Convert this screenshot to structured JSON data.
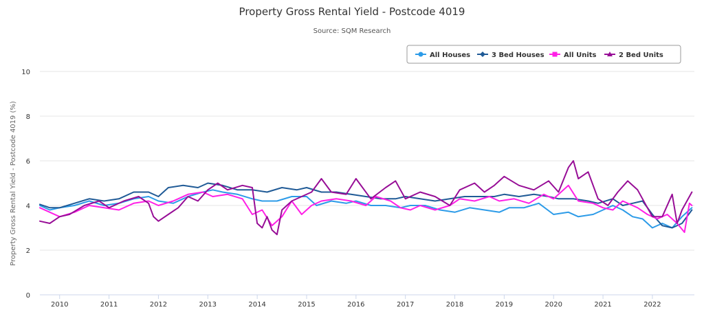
{
  "chart_data": {
    "type": "line",
    "title": "Property Gross Rental Yield - Postcode 4019",
    "subtitle": "Source: SQM Research",
    "xlabel": "",
    "ylabel": "Property Gross Rental Yield - Postcode 4019 (%)",
    "xlim": [
      2009.6,
      2022.85
    ],
    "ylim": [
      0,
      10
    ],
    "x_ticks": [
      "2010",
      "2011",
      "2012",
      "2013",
      "2014",
      "2015",
      "2016",
      "2017",
      "2018",
      "2019",
      "2020",
      "2021",
      "2022"
    ],
    "y_ticks": [
      "0",
      "2",
      "4",
      "6",
      "8",
      "10"
    ],
    "grid": true,
    "legend_position": "top-right",
    "series": [
      {
        "name": "All Houses",
        "color": "#2c9be8",
        "marker": "circle",
        "points": [
          [
            2009.6,
            4.0
          ],
          [
            2009.8,
            3.8
          ],
          [
            2010.0,
            3.9
          ],
          [
            2010.3,
            4.0
          ],
          [
            2010.6,
            4.2
          ],
          [
            2010.9,
            4.0
          ],
          [
            2011.2,
            4.1
          ],
          [
            2011.5,
            4.3
          ],
          [
            2011.8,
            4.4
          ],
          [
            2012.0,
            4.2
          ],
          [
            2012.3,
            4.1
          ],
          [
            2012.6,
            4.4
          ],
          [
            2012.9,
            4.6
          ],
          [
            2013.1,
            4.7
          ],
          [
            2013.3,
            4.6
          ],
          [
            2013.6,
            4.5
          ],
          [
            2013.9,
            4.3
          ],
          [
            2014.1,
            4.2
          ],
          [
            2014.4,
            4.2
          ],
          [
            2014.7,
            4.4
          ],
          [
            2015.0,
            4.4
          ],
          [
            2015.2,
            4.0
          ],
          [
            2015.5,
            4.2
          ],
          [
            2015.8,
            4.1
          ],
          [
            2016.0,
            4.2
          ],
          [
            2016.3,
            4.0
          ],
          [
            2016.6,
            4.0
          ],
          [
            2016.9,
            3.9
          ],
          [
            2017.1,
            4.0
          ],
          [
            2017.4,
            4.0
          ],
          [
            2017.7,
            3.8
          ],
          [
            2018.0,
            3.7
          ],
          [
            2018.3,
            3.9
          ],
          [
            2018.6,
            3.8
          ],
          [
            2018.9,
            3.7
          ],
          [
            2019.1,
            3.9
          ],
          [
            2019.4,
            3.9
          ],
          [
            2019.7,
            4.1
          ],
          [
            2020.0,
            3.6
          ],
          [
            2020.3,
            3.7
          ],
          [
            2020.5,
            3.5
          ],
          [
            2020.8,
            3.6
          ],
          [
            2021.0,
            3.8
          ],
          [
            2021.2,
            4.0
          ],
          [
            2021.4,
            3.8
          ],
          [
            2021.6,
            3.5
          ],
          [
            2021.8,
            3.4
          ],
          [
            2022.0,
            3.0
          ],
          [
            2022.2,
            3.2
          ],
          [
            2022.4,
            3.0
          ],
          [
            2022.6,
            3.5
          ],
          [
            2022.8,
            3.9
          ]
        ]
      },
      {
        "name": "3 Bed Houses",
        "color": "#1f5a96",
        "marker": "diamond",
        "points": [
          [
            2009.6,
            4.05
          ],
          [
            2009.8,
            3.9
          ],
          [
            2010.0,
            3.9
          ],
          [
            2010.3,
            4.1
          ],
          [
            2010.6,
            4.3
          ],
          [
            2010.9,
            4.2
          ],
          [
            2011.2,
            4.3
          ],
          [
            2011.5,
            4.6
          ],
          [
            2011.8,
            4.6
          ],
          [
            2012.0,
            4.4
          ],
          [
            2012.2,
            4.8
          ],
          [
            2012.5,
            4.9
          ],
          [
            2012.8,
            4.8
          ],
          [
            2013.0,
            5.0
          ],
          [
            2013.3,
            4.9
          ],
          [
            2013.6,
            4.7
          ],
          [
            2013.9,
            4.7
          ],
          [
            2014.2,
            4.6
          ],
          [
            2014.5,
            4.8
          ],
          [
            2014.8,
            4.7
          ],
          [
            2015.0,
            4.8
          ],
          [
            2015.3,
            4.6
          ],
          [
            2015.6,
            4.6
          ],
          [
            2015.9,
            4.5
          ],
          [
            2016.2,
            4.4
          ],
          [
            2016.5,
            4.3
          ],
          [
            2016.8,
            4.3
          ],
          [
            2017.0,
            4.4
          ],
          [
            2017.3,
            4.3
          ],
          [
            2017.6,
            4.2
          ],
          [
            2017.9,
            4.3
          ],
          [
            2018.2,
            4.4
          ],
          [
            2018.5,
            4.4
          ],
          [
            2018.8,
            4.4
          ],
          [
            2019.0,
            4.5
          ],
          [
            2019.3,
            4.4
          ],
          [
            2019.6,
            4.5
          ],
          [
            2019.9,
            4.4
          ],
          [
            2020.1,
            4.3
          ],
          [
            2020.4,
            4.3
          ],
          [
            2020.7,
            4.2
          ],
          [
            2020.9,
            4.1
          ],
          [
            2021.2,
            4.3
          ],
          [
            2021.4,
            4.0
          ],
          [
            2021.6,
            4.1
          ],
          [
            2021.8,
            4.2
          ],
          [
            2022.0,
            3.6
          ],
          [
            2022.2,
            3.1
          ],
          [
            2022.4,
            3.0
          ],
          [
            2022.6,
            3.2
          ],
          [
            2022.8,
            3.8
          ]
        ]
      },
      {
        "name": "All Units",
        "color": "#ff1fe6",
        "marker": "square",
        "points": [
          [
            2009.6,
            3.9
          ],
          [
            2009.8,
            3.7
          ],
          [
            2010.0,
            3.5
          ],
          [
            2010.3,
            3.7
          ],
          [
            2010.6,
            4.0
          ],
          [
            2010.9,
            3.9
          ],
          [
            2011.2,
            3.8
          ],
          [
            2011.5,
            4.1
          ],
          [
            2011.8,
            4.2
          ],
          [
            2012.0,
            4.0
          ],
          [
            2012.3,
            4.2
          ],
          [
            2012.6,
            4.5
          ],
          [
            2012.9,
            4.6
          ],
          [
            2013.1,
            4.4
          ],
          [
            2013.4,
            4.5
          ],
          [
            2013.7,
            4.3
          ],
          [
            2013.9,
            3.6
          ],
          [
            2014.1,
            3.8
          ],
          [
            2014.3,
            3.1
          ],
          [
            2014.5,
            3.5
          ],
          [
            2014.7,
            4.2
          ],
          [
            2014.9,
            3.6
          ],
          [
            2015.1,
            4.0
          ],
          [
            2015.3,
            4.2
          ],
          [
            2015.6,
            4.3
          ],
          [
            2015.9,
            4.2
          ],
          [
            2016.2,
            4.0
          ],
          [
            2016.4,
            4.4
          ],
          [
            2016.7,
            4.2
          ],
          [
            2016.9,
            3.9
          ],
          [
            2017.1,
            3.8
          ],
          [
            2017.3,
            4.0
          ],
          [
            2017.6,
            3.8
          ],
          [
            2017.9,
            4.0
          ],
          [
            2018.1,
            4.3
          ],
          [
            2018.4,
            4.2
          ],
          [
            2018.7,
            4.4
          ],
          [
            2018.9,
            4.2
          ],
          [
            2019.2,
            4.3
          ],
          [
            2019.5,
            4.1
          ],
          [
            2019.8,
            4.5
          ],
          [
            2020.0,
            4.3
          ],
          [
            2020.3,
            4.9
          ],
          [
            2020.5,
            4.2
          ],
          [
            2020.8,
            4.1
          ],
          [
            2021.0,
            3.9
          ],
          [
            2021.2,
            3.8
          ],
          [
            2021.4,
            4.2
          ],
          [
            2021.7,
            3.9
          ],
          [
            2021.9,
            3.6
          ],
          [
            2022.1,
            3.4
          ],
          [
            2022.3,
            3.6
          ],
          [
            2022.5,
            3.2
          ],
          [
            2022.65,
            2.8
          ],
          [
            2022.75,
            4.1
          ],
          [
            2022.8,
            4.0
          ]
        ]
      },
      {
        "name": "2 Bed Units",
        "color": "#970d96",
        "marker": "triangle",
        "points": [
          [
            2009.6,
            3.3
          ],
          [
            2009.8,
            3.2
          ],
          [
            2010.0,
            3.5
          ],
          [
            2010.2,
            3.6
          ],
          [
            2010.5,
            4.0
          ],
          [
            2010.8,
            4.2
          ],
          [
            2011.0,
            3.9
          ],
          [
            2011.3,
            4.2
          ],
          [
            2011.6,
            4.4
          ],
          [
            2011.8,
            4.1
          ],
          [
            2011.9,
            3.5
          ],
          [
            2012.0,
            3.3
          ],
          [
            2012.2,
            3.6
          ],
          [
            2012.4,
            3.9
          ],
          [
            2012.6,
            4.4
          ],
          [
            2012.8,
            4.2
          ],
          [
            2013.0,
            4.7
          ],
          [
            2013.2,
            5.0
          ],
          [
            2013.4,
            4.7
          ],
          [
            2013.7,
            4.9
          ],
          [
            2013.9,
            4.8
          ],
          [
            2014.0,
            3.2
          ],
          [
            2014.1,
            3.0
          ],
          [
            2014.2,
            3.5
          ],
          [
            2014.3,
            2.9
          ],
          [
            2014.4,
            2.7
          ],
          [
            2014.5,
            3.8
          ],
          [
            2014.7,
            4.2
          ],
          [
            2014.9,
            4.4
          ],
          [
            2015.1,
            4.6
          ],
          [
            2015.3,
            5.2
          ],
          [
            2015.5,
            4.6
          ],
          [
            2015.8,
            4.5
          ],
          [
            2016.0,
            5.2
          ],
          [
            2016.3,
            4.3
          ],
          [
            2016.6,
            4.8
          ],
          [
            2016.8,
            5.1
          ],
          [
            2017.0,
            4.3
          ],
          [
            2017.3,
            4.6
          ],
          [
            2017.6,
            4.4
          ],
          [
            2017.9,
            4.0
          ],
          [
            2018.1,
            4.7
          ],
          [
            2018.4,
            5.0
          ],
          [
            2018.6,
            4.6
          ],
          [
            2018.8,
            4.9
          ],
          [
            2019.0,
            5.3
          ],
          [
            2019.3,
            4.9
          ],
          [
            2019.6,
            4.7
          ],
          [
            2019.9,
            5.1
          ],
          [
            2020.1,
            4.6
          ],
          [
            2020.3,
            5.7
          ],
          [
            2020.4,
            6.0
          ],
          [
            2020.5,
            5.2
          ],
          [
            2020.7,
            5.5
          ],
          [
            2020.9,
            4.3
          ],
          [
            2021.1,
            4.0
          ],
          [
            2021.3,
            4.6
          ],
          [
            2021.5,
            5.1
          ],
          [
            2021.7,
            4.7
          ],
          [
            2021.9,
            3.9
          ],
          [
            2022.0,
            3.5
          ],
          [
            2022.2,
            3.5
          ],
          [
            2022.4,
            4.5
          ],
          [
            2022.5,
            3.2
          ],
          [
            2022.6,
            3.8
          ],
          [
            2022.8,
            4.6
          ]
        ]
      }
    ]
  }
}
